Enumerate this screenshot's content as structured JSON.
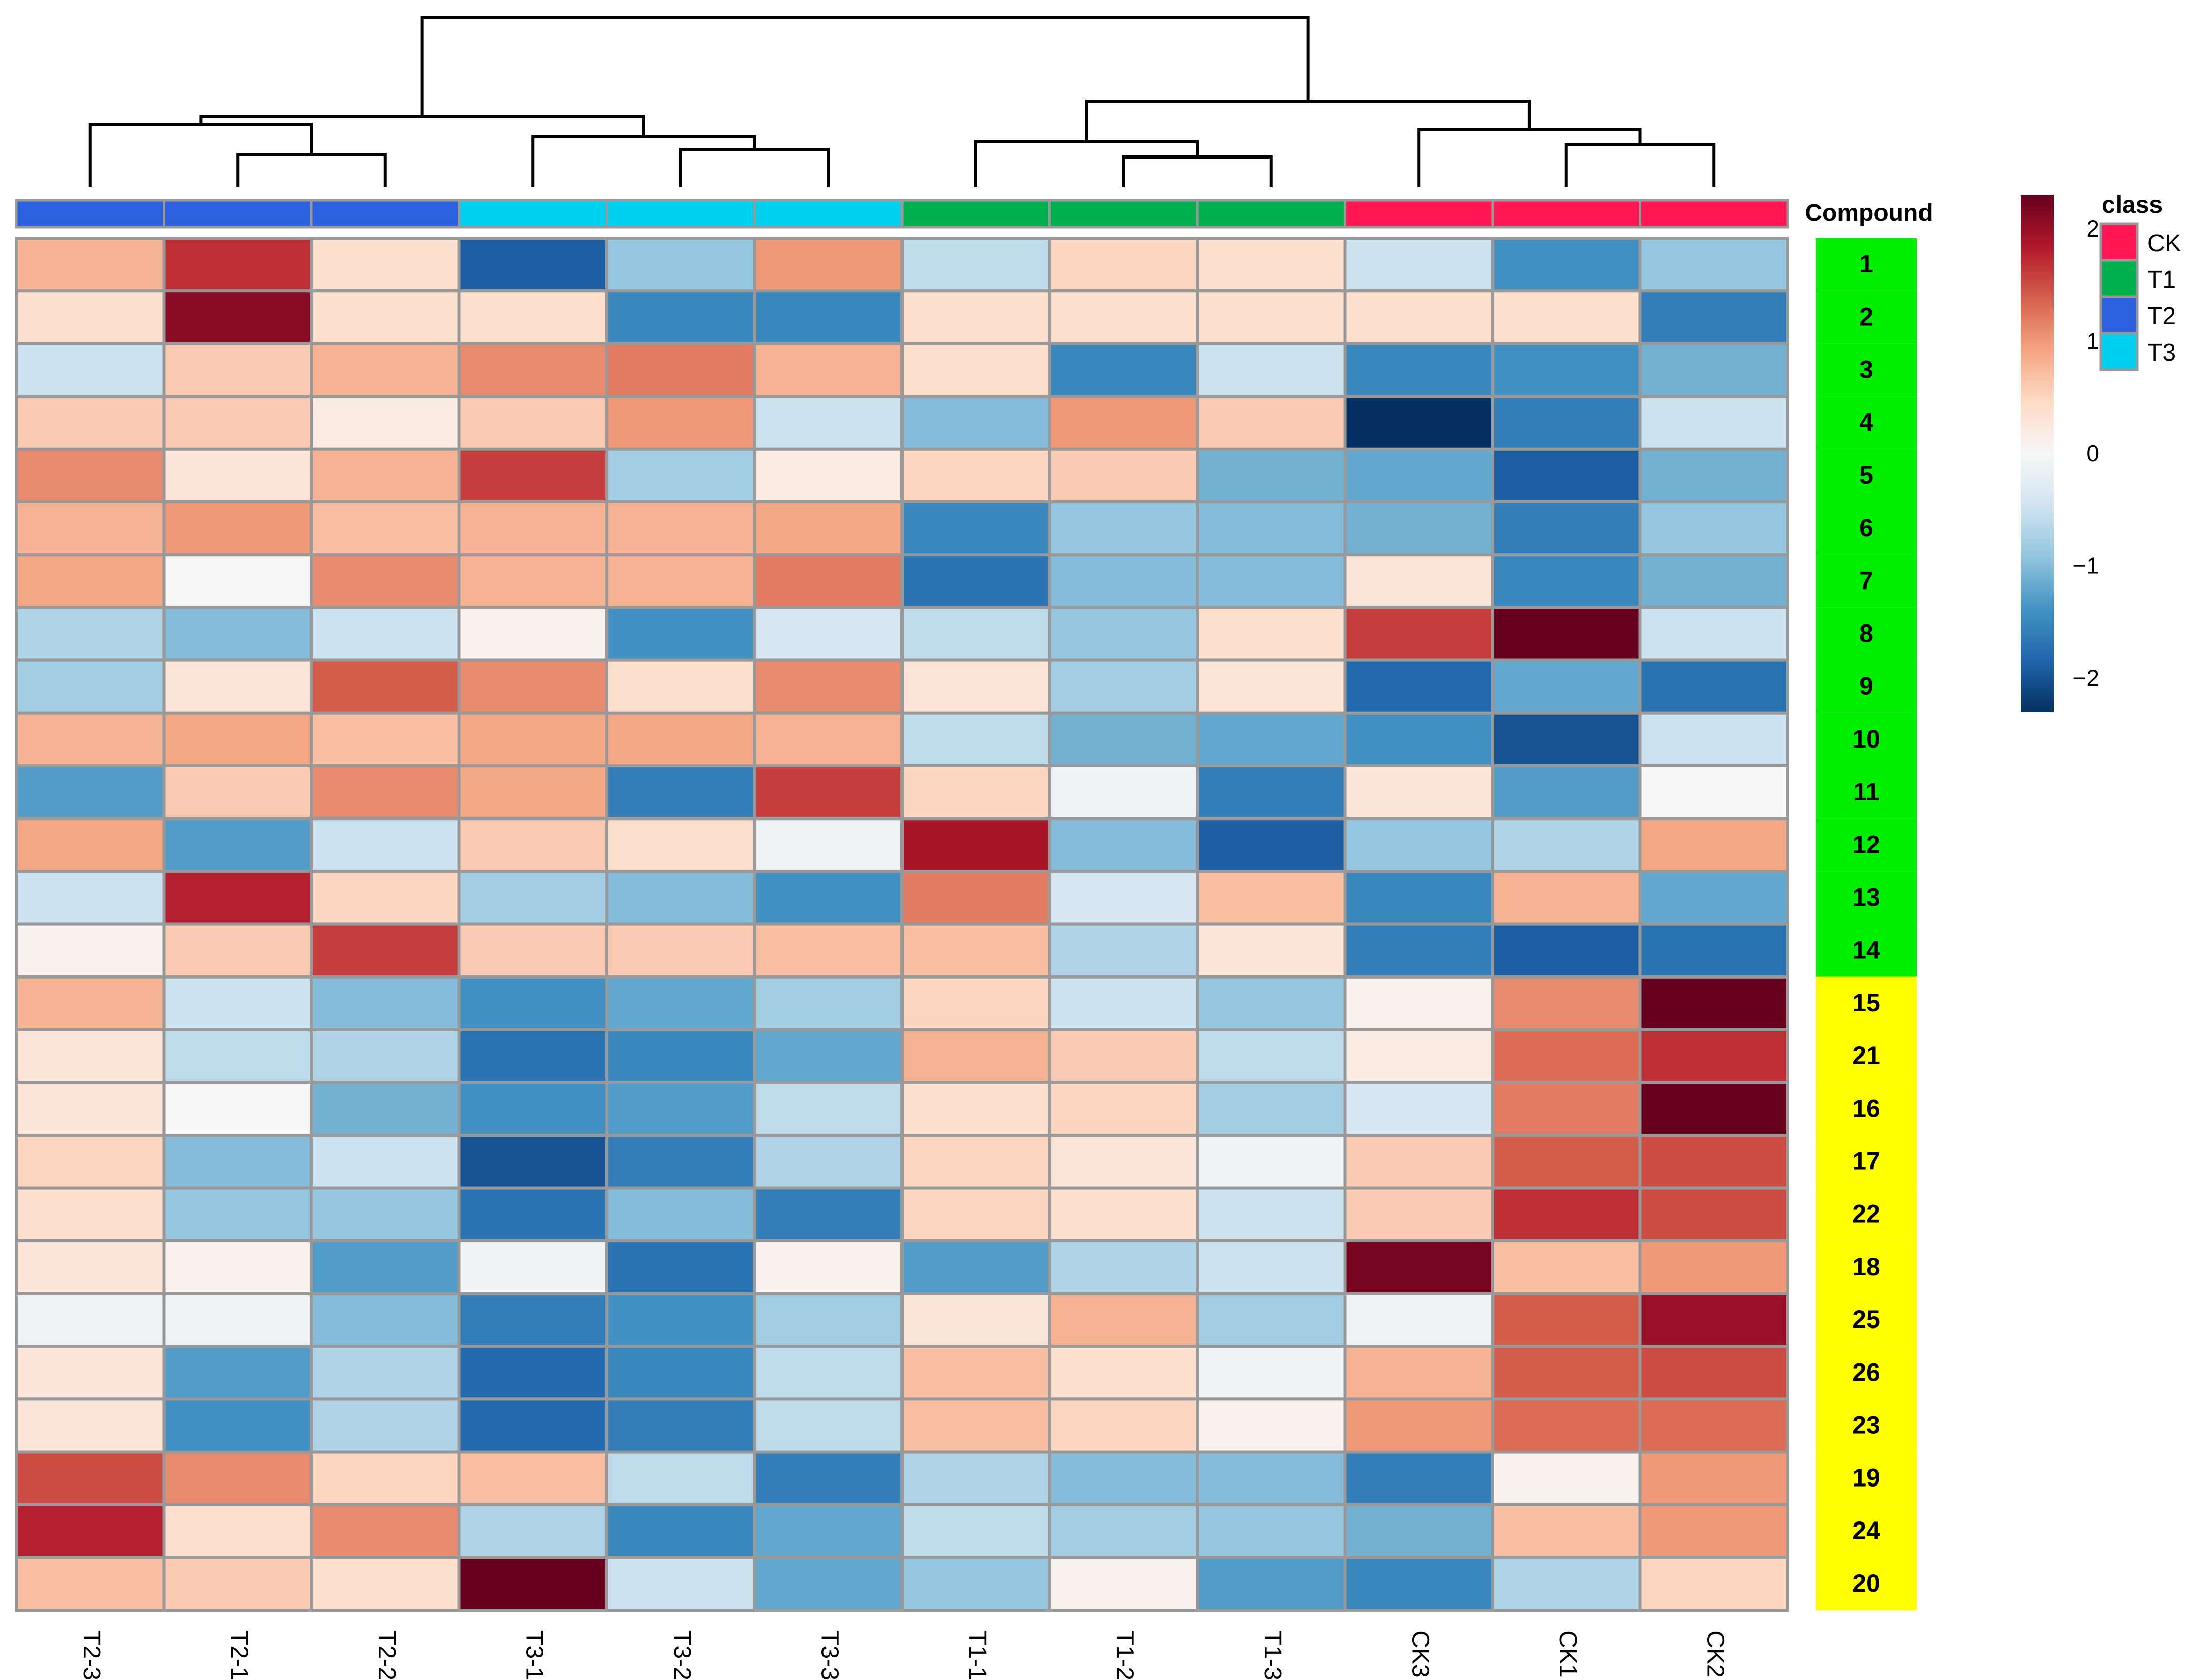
{
  "chart_data": {
    "type": "heatmap",
    "columns": [
      "T2-3",
      "T2-1",
      "T2-2",
      "T3-1",
      "T3-2",
      "T3-3",
      "T1-1",
      "T1-2",
      "T1-3",
      "CK3",
      "CK1",
      "CK2"
    ],
    "column_class": [
      "T2",
      "T2",
      "T2",
      "T3",
      "T3",
      "T3",
      "T1",
      "T1",
      "T1",
      "CK",
      "CK",
      "CK"
    ],
    "rows": [
      "1",
      "2",
      "3",
      "4",
      "5",
      "6",
      "7",
      "8",
      "9",
      "10",
      "11",
      "12",
      "13",
      "14",
      "15",
      "21",
      "16",
      "17",
      "22",
      "18",
      "25",
      "26",
      "23",
      "19",
      "24",
      "20"
    ],
    "row_group_colors": [
      "#00ee00",
      "#00ee00",
      "#00ee00",
      "#00ee00",
      "#00ee00",
      "#00ee00",
      "#00ee00",
      "#00ee00",
      "#00ee00",
      "#00ee00",
      "#00ee00",
      "#00ee00",
      "#00ee00",
      "#00ee00",
      "#ffff00",
      "#ffff00",
      "#ffff00",
      "#ffff00",
      "#ffff00",
      "#ffff00",
      "#ffff00",
      "#ffff00",
      "#ffff00",
      "#ffff00",
      "#ffff00",
      "#ffff00"
    ],
    "row_annotation_title": "Compound",
    "values": [
      [
        0.8,
        1.7,
        0.4,
        -1.9,
        -0.9,
        1.0,
        -0.6,
        0.5,
        0.4,
        -0.5,
        -1.4,
        -0.9
      ],
      [
        0.4,
        2.1,
        0.4,
        0.4,
        -1.5,
        -1.5,
        0.4,
        0.4,
        0.4,
        0.4,
        0.4,
        -1.6
      ],
      [
        -0.5,
        0.6,
        0.8,
        1.1,
        1.2,
        0.8,
        0.4,
        -1.5,
        -0.5,
        -1.5,
        -1.4,
        -1.1
      ],
      [
        0.6,
        0.6,
        0.2,
        0.6,
        1.0,
        -0.5,
        -1.0,
        1.0,
        0.6,
        -2.3,
        -1.6,
        -0.5
      ],
      [
        1.1,
        0.3,
        0.8,
        1.6,
        -0.8,
        0.2,
        0.5,
        0.6,
        -1.1,
        -1.2,
        -1.9,
        -1.1
      ],
      [
        0.8,
        1.0,
        0.7,
        0.8,
        0.8,
        0.9,
        -1.5,
        -0.9,
        -1.0,
        -1.1,
        -1.6,
        -0.9
      ],
      [
        0.9,
        0.0,
        1.1,
        0.8,
        0.8,
        1.2,
        -1.7,
        -1.0,
        -1.0,
        0.3,
        -1.5,
        -1.1
      ],
      [
        -0.7,
        -1.0,
        -0.5,
        0.1,
        -1.4,
        -0.4,
        -0.6,
        -0.9,
        0.4,
        1.6,
        2.3,
        -0.5
      ],
      [
        -0.8,
        0.3,
        1.4,
        1.1,
        0.4,
        1.1,
        0.3,
        -0.8,
        0.3,
        -1.8,
        -1.2,
        -1.7
      ],
      [
        0.8,
        0.9,
        0.7,
        0.9,
        0.9,
        0.8,
        -0.6,
        -1.1,
        -1.2,
        -1.4,
        -2.0,
        -0.5
      ],
      [
        -1.3,
        0.6,
        1.1,
        0.9,
        -1.6,
        1.6,
        0.5,
        -0.1,
        -1.6,
        0.3,
        -1.3,
        0.0
      ],
      [
        0.9,
        -1.3,
        -0.5,
        0.6,
        0.4,
        -0.1,
        1.9,
        -1.0,
        -1.9,
        -0.9,
        -0.7,
        0.9
      ],
      [
        -0.5,
        1.8,
        0.5,
        -0.8,
        -1.0,
        -1.4,
        1.2,
        -0.4,
        0.7,
        -1.5,
        0.8,
        -1.2
      ],
      [
        0.1,
        0.6,
        1.6,
        0.6,
        0.6,
        0.7,
        0.7,
        -0.7,
        0.3,
        -1.6,
        -1.9,
        -1.7
      ],
      [
        0.8,
        -0.5,
        -1.0,
        -1.4,
        -1.2,
        -0.8,
        0.5,
        -0.5,
        -0.9,
        0.1,
        1.1,
        2.4
      ],
      [
        0.3,
        -0.6,
        -0.7,
        -1.7,
        -1.5,
        -1.2,
        0.8,
        0.6,
        -0.6,
        0.2,
        1.3,
        1.7
      ],
      [
        0.3,
        0.0,
        -1.1,
        -1.4,
        -1.3,
        -0.6,
        0.4,
        0.5,
        -0.8,
        -0.4,
        1.2,
        2.5
      ],
      [
        0.5,
        -1.0,
        -0.5,
        -2.0,
        -1.6,
        -0.7,
        0.5,
        0.3,
        -0.1,
        0.6,
        1.4,
        1.5
      ],
      [
        0.4,
        -0.9,
        -0.9,
        -1.7,
        -1.0,
        -1.6,
        0.5,
        0.4,
        -0.5,
        0.6,
        1.7,
        1.5
      ],
      [
        0.3,
        0.1,
        -1.3,
        -0.1,
        -1.7,
        0.1,
        -1.3,
        -0.7,
        -0.5,
        2.2,
        0.7,
        1.0
      ],
      [
        -0.1,
        -0.1,
        -1.0,
        -1.6,
        -1.4,
        -0.8,
        0.3,
        0.8,
        -0.8,
        -0.1,
        1.4,
        2.0
      ],
      [
        0.3,
        -1.3,
        -0.7,
        -1.8,
        -1.5,
        -0.6,
        0.7,
        0.4,
        -0.1,
        0.8,
        1.4,
        1.5
      ],
      [
        0.3,
        -1.4,
        -0.7,
        -1.8,
        -1.6,
        -0.6,
        0.7,
        0.5,
        0.1,
        1.0,
        1.3,
        1.3
      ],
      [
        1.5,
        1.1,
        0.5,
        0.7,
        -0.6,
        -1.6,
        -0.7,
        -1.0,
        -1.0,
        -1.6,
        0.1,
        1.0
      ],
      [
        1.8,
        0.4,
        1.1,
        -0.7,
        -1.5,
        -1.2,
        -0.6,
        -0.8,
        -0.9,
        -1.1,
        0.7,
        1.0
      ],
      [
        0.7,
        0.6,
        0.4,
        2.4,
        -0.5,
        -1.2,
        -0.9,
        0.1,
        -1.3,
        -1.5,
        -0.7,
        0.5
      ]
    ],
    "scale": {
      "min": -2.3,
      "max": 2.3,
      "ticks": [
        2,
        1,
        0,
        -1,
        -2
      ],
      "tick_labels": [
        "2",
        "1",
        "0",
        "−1",
        "−2"
      ]
    },
    "colormap": [
      "#053061",
      "#2166ac",
      "#4393c3",
      "#92c5de",
      "#d1e5f0",
      "#f7f7f7",
      "#fddbc7",
      "#f4a582",
      "#d6604d",
      "#b2182b",
      "#67001f"
    ],
    "legend": {
      "title": "class",
      "entries": [
        {
          "label": "CK",
          "color": "#ff1654"
        },
        {
          "label": "T1",
          "color": "#00b04f"
        },
        {
          "label": "T2",
          "color": "#2b60de"
        },
        {
          "label": "T3",
          "color": "#00d0f0"
        }
      ]
    },
    "dendrogram": "column clustering: ((T2-3,(T2-1,T2-2)),(T3-1,(T3-2,T3-3))),((T1-1,(T1-2,T1-3)),(CK3,(CK1,CK2)))"
  }
}
